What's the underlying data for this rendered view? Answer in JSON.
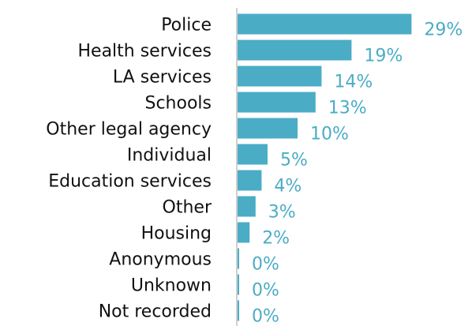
{
  "chart_data": {
    "type": "bar",
    "orientation": "horizontal",
    "categories": [
      "Police",
      "Health services",
      "LA services",
      "Schools",
      "Other legal agency",
      "Individual",
      "Education services",
      "Other",
      "Housing",
      "Anonymous",
      "Unknown",
      "Not recorded"
    ],
    "values": [
      29,
      19,
      14,
      13,
      10,
      5,
      4,
      3,
      2,
      0,
      0,
      0
    ],
    "value_labels": [
      "29%",
      "19%",
      "14%",
      "13%",
      "10%",
      "5%",
      "4%",
      "3%",
      "2%",
      "0%",
      "0%",
      "0%"
    ],
    "bar_color": "#4BACC6",
    "label_color": "#4BACC6",
    "axis_color": "#BFBFBF",
    "title": "",
    "xlabel": "",
    "ylabel": ""
  }
}
